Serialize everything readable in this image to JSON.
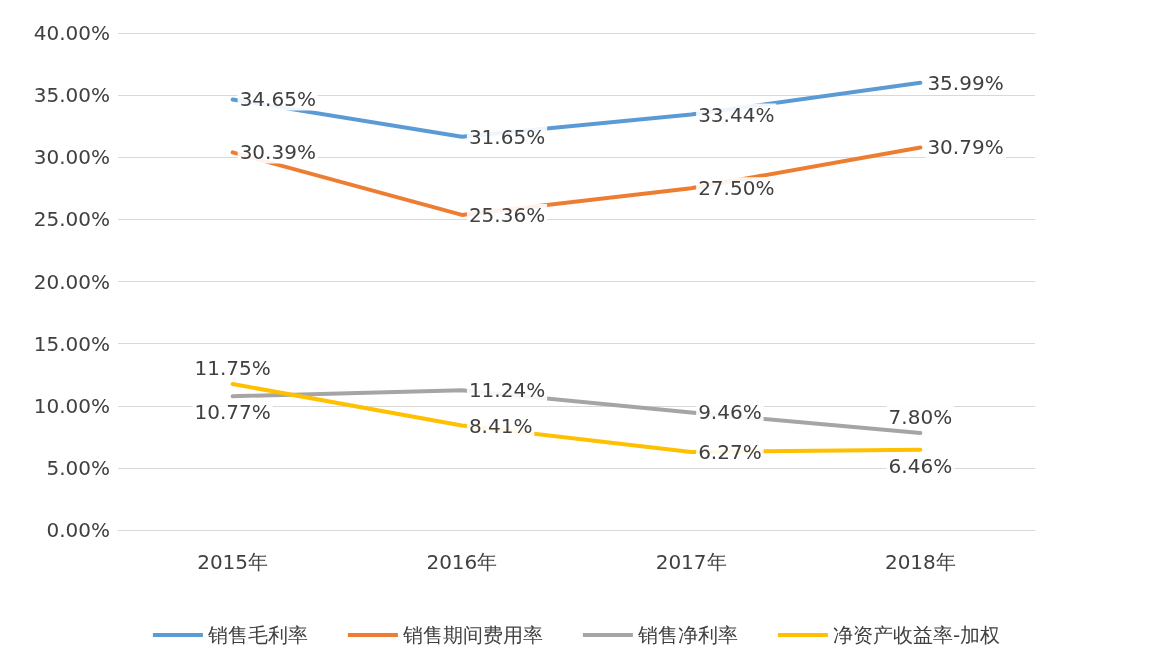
{
  "chart_data": {
    "type": "line",
    "categories": [
      "2015年",
      "2016年",
      "2017年",
      "2018年"
    ],
    "series": [
      {
        "name": "销售毛利率",
        "color": "#5b9bd5",
        "values": [
          34.65,
          31.65,
          33.44,
          35.99
        ],
        "value_labels": [
          "34.65%",
          "31.65%",
          "33.44%",
          "35.99%"
        ]
      },
      {
        "name": "销售期间费用率",
        "color": "#ed7d31",
        "values": [
          30.39,
          25.36,
          27.5,
          30.79
        ],
        "value_labels": [
          "30.39%",
          "25.36%",
          "27.50%",
          "30.79%"
        ]
      },
      {
        "name": "销售净利率",
        "color": "#a5a5a5",
        "values": [
          10.77,
          11.24,
          9.46,
          7.8
        ],
        "value_labels": [
          "10.77%",
          "11.24%",
          "9.46%",
          "7.80%"
        ]
      },
      {
        "name": "净资产收益率-加权",
        "color": "#ffc000",
        "values": [
          11.75,
          8.41,
          6.27,
          6.46
        ],
        "value_labels": [
          "11.75%",
          "8.41%",
          "6.27%",
          "6.46%"
        ]
      }
    ],
    "ylim": [
      0,
      40
    ],
    "yticks": [
      {
        "value": 0,
        "label": "0.00%"
      },
      {
        "value": 5,
        "label": "5.00%"
      },
      {
        "value": 10,
        "label": "10.00%"
      },
      {
        "value": 15,
        "label": "15.00%"
      },
      {
        "value": 20,
        "label": "20.00%"
      },
      {
        "value": 25,
        "label": "25.00%"
      },
      {
        "value": 30,
        "label": "30.00%"
      },
      {
        "value": 35,
        "label": "35.00%"
      },
      {
        "value": 40,
        "label": "40.00%"
      }
    ],
    "grid": "y",
    "legend": "bottom",
    "marker": "none",
    "line_style": "solid"
  }
}
